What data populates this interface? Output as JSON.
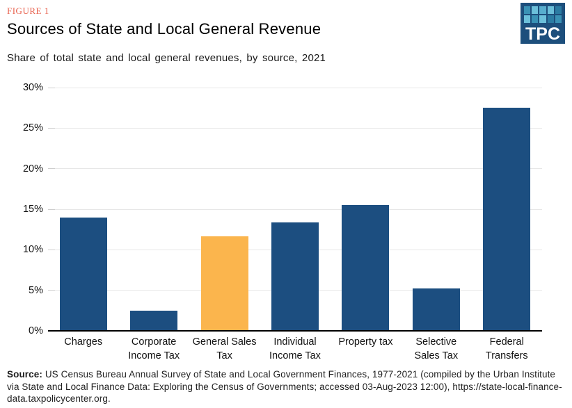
{
  "figure_label": "FIGURE 1",
  "logo": {
    "text": "TPC",
    "bg": "#1D4F7C",
    "square_colors": [
      "#3A92B5",
      "#6CC0DA",
      "#58AECE",
      "#6CC0DA",
      "#2B7CA3",
      "#6CC0DA",
      "#3A92B5",
      "#6CC0DA",
      "#2B7CA3",
      "#3A92B5"
    ]
  },
  "chart_data": {
    "type": "bar",
    "title": "Sources of State and Local General Revenue",
    "subtitle": "Share of total state and local general revenues, by source, 2021",
    "categories": [
      "Charges",
      "Corporate Income Tax",
      "General Sales Tax",
      "Individual Income Tax",
      "Property tax",
      "Selective Sales Tax",
      "Federal Transfers"
    ],
    "values": [
      14.0,
      2.5,
      11.7,
      13.4,
      15.5,
      5.2,
      27.5
    ],
    "bar_colors": [
      "#1C4E80",
      "#1C4E80",
      "#FBB54D",
      "#1C4E80",
      "#1C4E80",
      "#1C4E80",
      "#1C4E80"
    ],
    "highlight_index": 2,
    "xlabel": "",
    "ylabel": "",
    "ylim": [
      0,
      30
    ],
    "ytick_step": 5,
    "ytick_labels": [
      "0%",
      "5%",
      "10%",
      "15%",
      "20%",
      "25%",
      "30%"
    ],
    "grid": true,
    "legend": false
  },
  "source": {
    "label": "Source:",
    "text": " US Census Bureau Annual Survey of State and Local Government Finances, 1977-2021 (compiled by the Urban Institute via State and Local Finance Data: Exploring the Census of Governments; accessed 03-Aug-2023 12:00), https://state-local-finance-data.taxpolicycenter.org."
  },
  "colors": {
    "bar_blue": "#1C4E80",
    "bar_orange": "#FBB54D",
    "figure_label": "#E8614D",
    "gridline": "#E7E7E7",
    "axis": "#000000"
  }
}
